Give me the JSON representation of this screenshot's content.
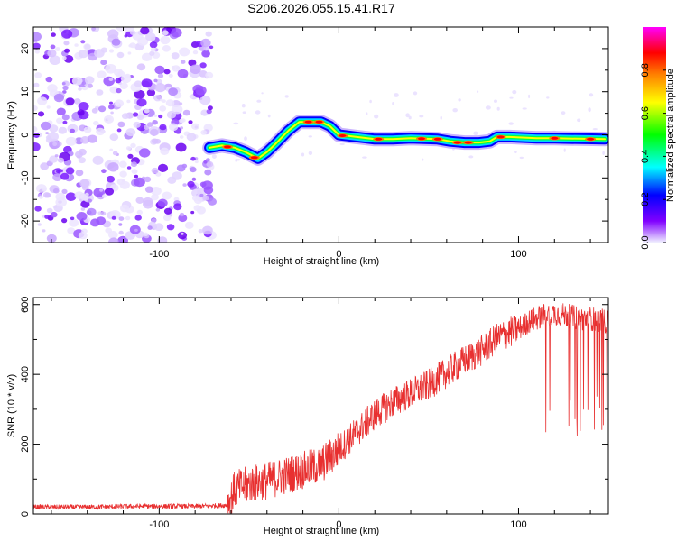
{
  "title": "S206.2026.055.15.41.R17",
  "chart_data": [
    {
      "type": "heatmap",
      "name": "spectrogram",
      "xlabel": "Height of straight line (km)",
      "ylabel": "Frequency (Hz)",
      "xlim": [
        -170,
        150
      ],
      "ylim": [
        -25,
        25
      ],
      "xticks": [
        -100,
        0,
        100
      ],
      "yticks": [
        20,
        10,
        0,
        -10,
        -20
      ],
      "noise_region_x": [
        -170,
        -70
      ],
      "signal_track": {
        "x": [
          -72,
          -65,
          -58,
          -52,
          -45,
          -40,
          -35,
          -28,
          -22,
          -15,
          -10,
          -5,
          0,
          10,
          20,
          30,
          40,
          55,
          62,
          70,
          78,
          84,
          88,
          95,
          110,
          120,
          148
        ],
        "freq_hz": [
          -3,
          -2.5,
          -3,
          -4,
          -5.5,
          -4,
          -2,
          1,
          3,
          3,
          3,
          2,
          0,
          -0.5,
          -1,
          -1,
          -0.8,
          -1,
          -1.5,
          -1.8,
          -1.8,
          -1.5,
          -0.5,
          -0.5,
          -0.8,
          -0.8,
          -1
        ]
      },
      "colorbar": {
        "label": "Normalized spectral amplitude",
        "range": [
          0,
          1
        ],
        "ticks": [
          0.0,
          0.2,
          0.4,
          0.6,
          0.8
        ],
        "tick_labels": [
          "0.0",
          "0.2",
          "0.4",
          "0.6",
          "0.8"
        ],
        "colors": [
          "#f0f0ff",
          "#8000ff",
          "#0000ff",
          "#00ffff",
          "#00ff00",
          "#ffff00",
          "#ff8000",
          "#ff0000",
          "#ff00ff",
          "#ff4080"
        ]
      }
    },
    {
      "type": "line",
      "name": "snr",
      "xlabel": "Height of straight line (km)",
      "ylabel": "SNR (10 * v/v)",
      "xlim": [
        -170,
        150
      ],
      "ylim": [
        0,
        620
      ],
      "xticks": [
        -100,
        0,
        100
      ],
      "yticks": [
        0,
        200,
        400,
        600
      ],
      "color": "#e83030",
      "series": [
        {
          "name": "SNR",
          "x": [
            -170,
            -140,
            -110,
            -80,
            -62,
            -58,
            -50,
            -40,
            -30,
            -20,
            -10,
            0,
            10,
            20,
            30,
            40,
            50,
            60,
            70,
            80,
            90,
            100,
            105,
            110,
            115,
            120,
            125,
            130,
            135,
            140,
            145,
            150
          ],
          "y": [
            20,
            20,
            22,
            22,
            25,
            70,
            85,
            95,
            110,
            125,
            140,
            185,
            235,
            285,
            320,
            345,
            370,
            405,
            440,
            470,
            510,
            530,
            550,
            560,
            570,
            575,
            570,
            565,
            560,
            560,
            555,
            550
          ]
        }
      ]
    }
  ]
}
